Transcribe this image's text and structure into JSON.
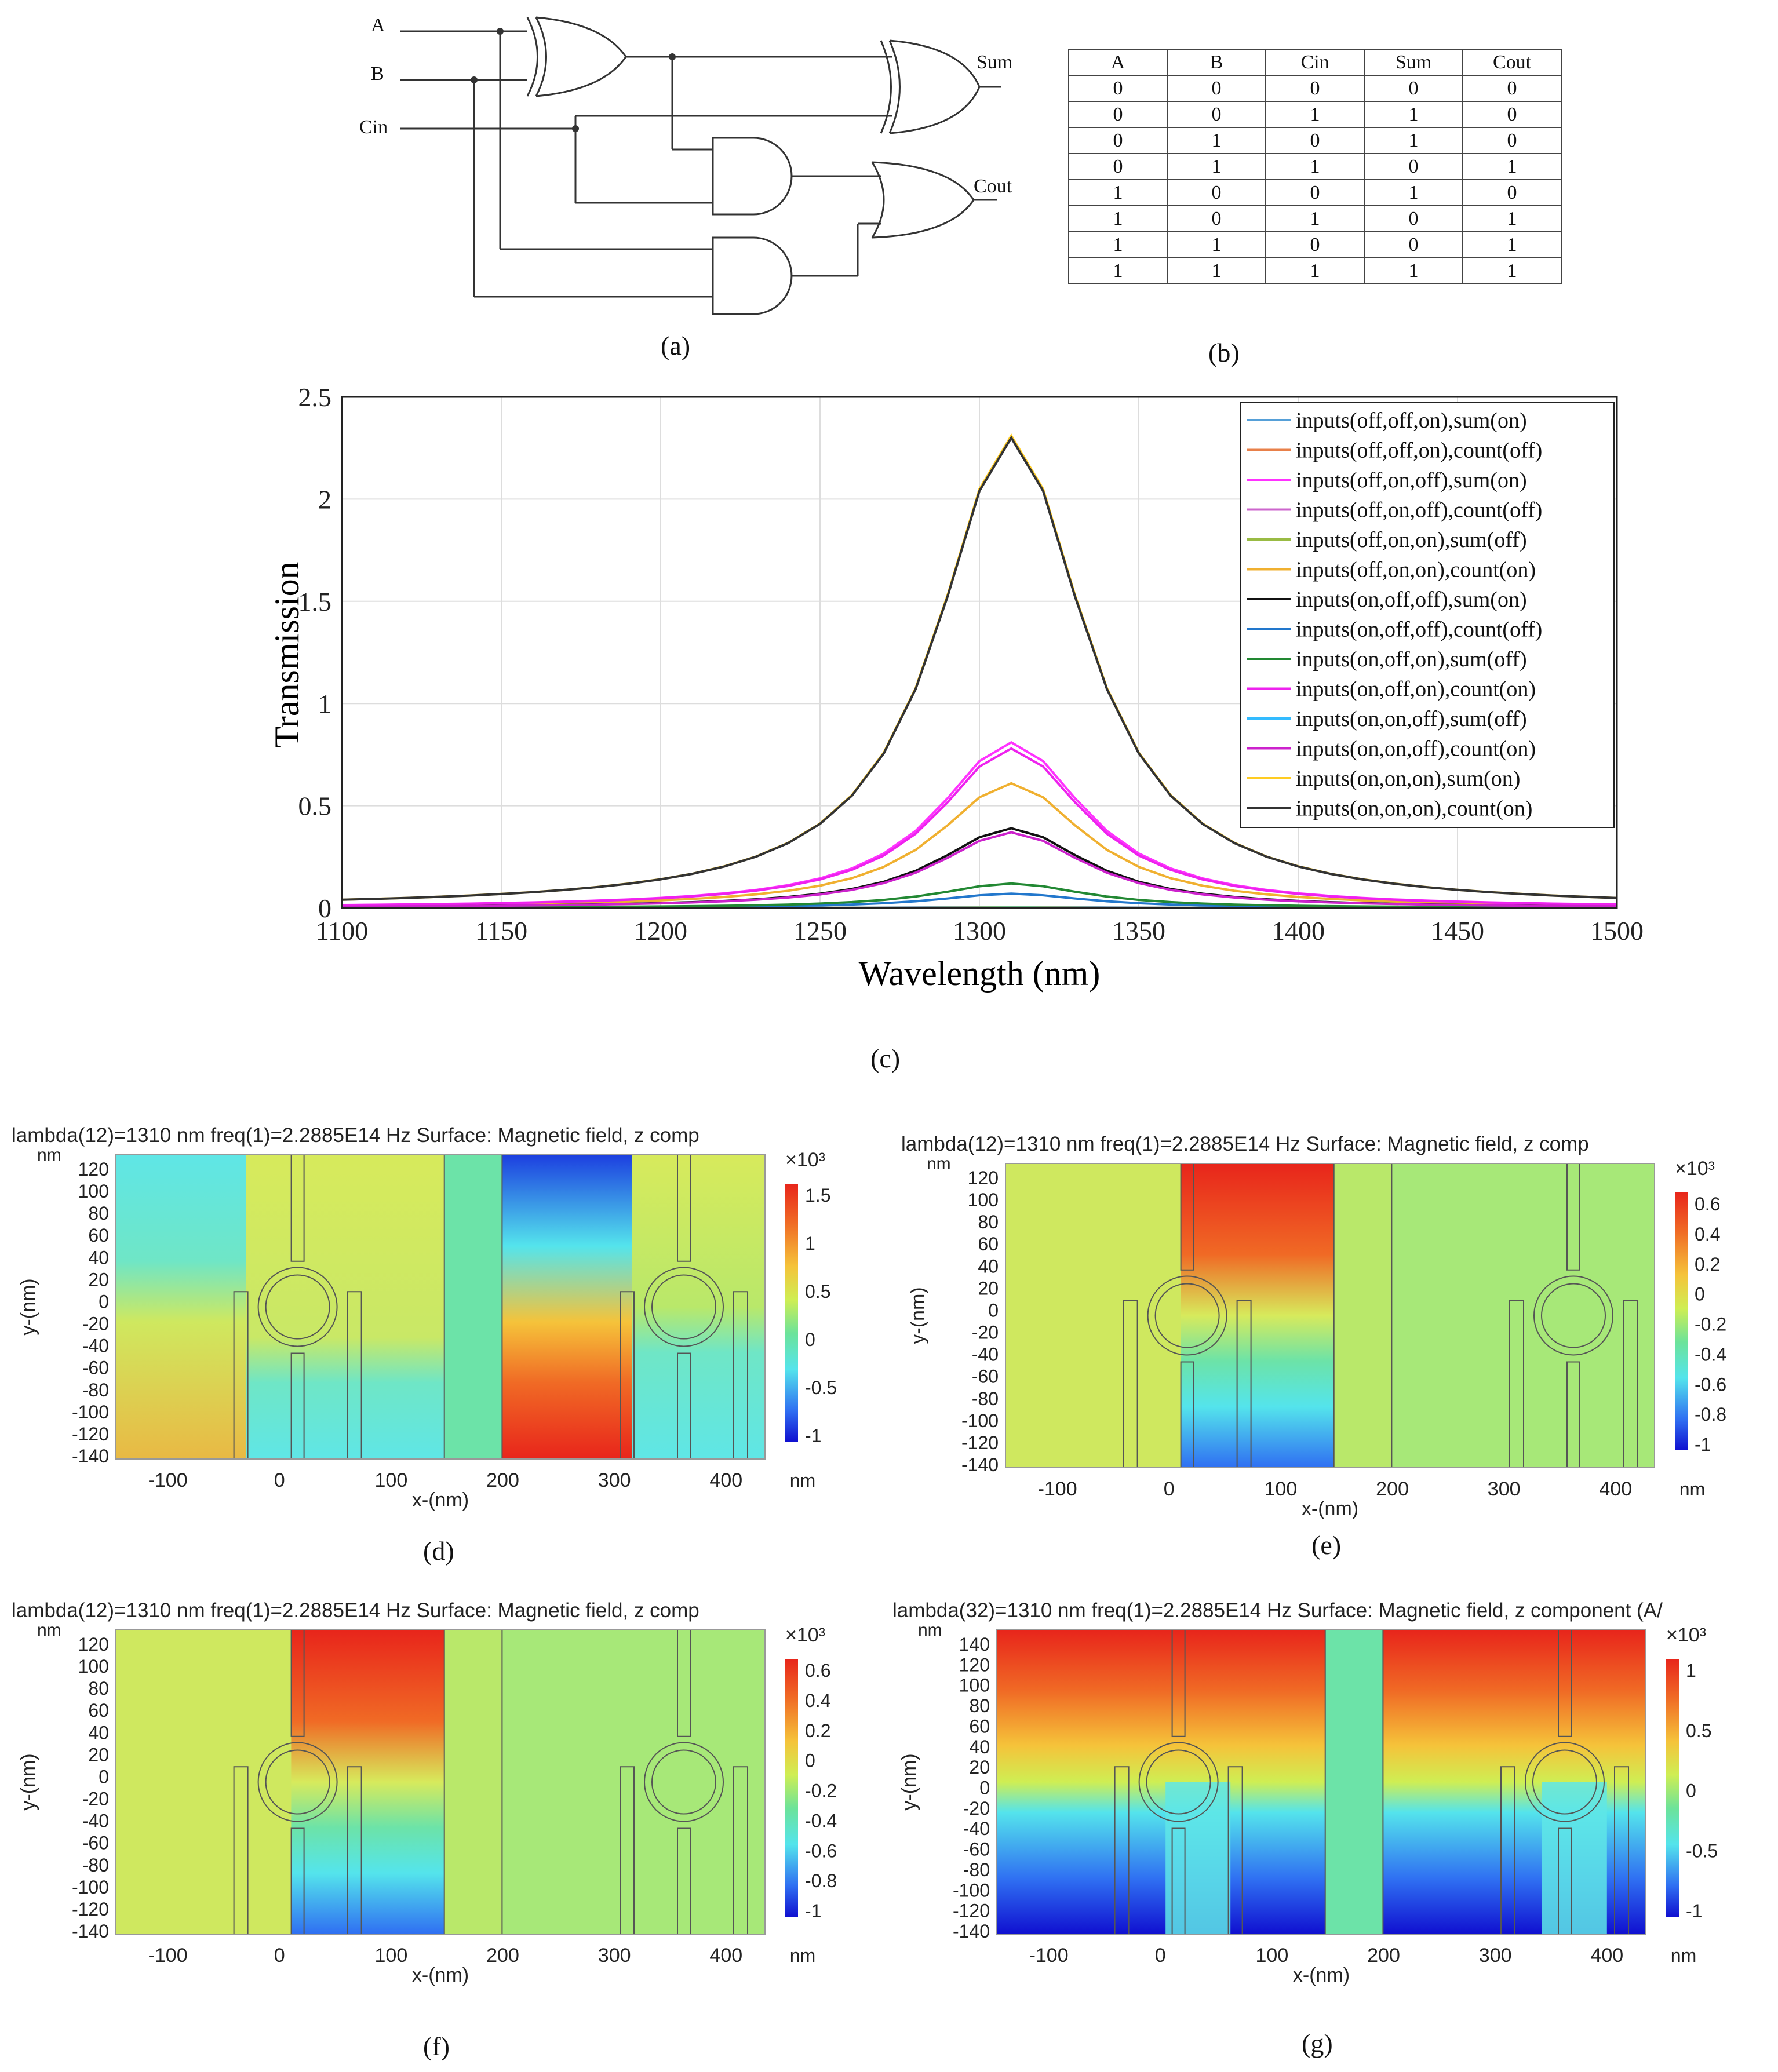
{
  "figure": {
    "panel_labels": {
      "a": "(a)",
      "b": "(b)",
      "c": "(c)",
      "d": "(d)",
      "e": "(e)",
      "f": "(f)",
      "g": "(g)"
    }
  },
  "circuit": {
    "inputs": [
      "A",
      "B",
      "Cin"
    ],
    "outputs": [
      "Sum",
      "Cout"
    ]
  },
  "truth_table": {
    "headers": [
      "A",
      "B",
      "Cin",
      "Sum",
      "Cout"
    ],
    "rows": [
      [
        "0",
        "0",
        "0",
        "0",
        "0"
      ],
      [
        "0",
        "0",
        "1",
        "1",
        "0"
      ],
      [
        "0",
        "1",
        "0",
        "1",
        "0"
      ],
      [
        "0",
        "1",
        "1",
        "0",
        "1"
      ],
      [
        "1",
        "0",
        "0",
        "1",
        "0"
      ],
      [
        "1",
        "0",
        "1",
        "0",
        "1"
      ],
      [
        "1",
        "1",
        "0",
        "0",
        "1"
      ],
      [
        "1",
        "1",
        "1",
        "1",
        "1"
      ]
    ]
  },
  "chart_data": {
    "type": "line",
    "title": "",
    "xlabel": "Wavelength (nm)",
    "ylabel": "Transmission",
    "xlim": [
      1100,
      1500
    ],
    "ylim": [
      0,
      2.5
    ],
    "xticks": [
      "1100",
      "1150",
      "1200",
      "1250",
      "1300",
      "1350",
      "1400",
      "1450",
      "1500"
    ],
    "yticks": [
      "0",
      "0.5",
      "1",
      "1.5",
      "2",
      "2.5"
    ],
    "grid": true,
    "legend_position": "top-right",
    "peak_wavelength": 1310,
    "series": [
      {
        "name": "inputs(off,off,on),sum(on)",
        "color": "#56a0d8",
        "peak": 0.005
      },
      {
        "name": "inputs(off,off,on),count(off)",
        "color": "#e8804a",
        "peak": 0.002
      },
      {
        "name": "inputs(off,on,off),sum(on)",
        "color": "#ff33ff",
        "peak": 0.81
      },
      {
        "name": "inputs(off,on,off),count(off)",
        "color": "#cc66cc",
        "peak": 0.004
      },
      {
        "name": "inputs(off,on,on),sum(off)",
        "color": "#99bb44",
        "peak": 0.003
      },
      {
        "name": "inputs(off,on,on),count(on)",
        "color": "#f0b030",
        "peak": 0.61
      },
      {
        "name": "inputs(on,off,off),sum(on)",
        "color": "#111111",
        "peak": 0.39
      },
      {
        "name": "inputs(on,off,off),count(off)",
        "color": "#2277cc",
        "peak": 0.07
      },
      {
        "name": "inputs(on,off,on),sum(off)",
        "color": "#228833",
        "peak": 0.12
      },
      {
        "name": "inputs(on,off,on),count(on)",
        "color": "#ee22ee",
        "peak": 0.78
      },
      {
        "name": "inputs(on,on,off),sum(off)",
        "color": "#33bbff",
        "peak": 0.001
      },
      {
        "name": "inputs(on,on,off),count(on)",
        "color": "#cc22cc",
        "peak": 0.37
      },
      {
        "name": "inputs(on,on,on),sum(on)",
        "color": "#ffcc22",
        "peak": 2.31
      },
      {
        "name": "inputs(on,on,on),count(on)",
        "color": "#333333",
        "peak": 2.3
      }
    ]
  },
  "field_maps": [
    {
      "id": "d",
      "title": "lambda(12)=1310 nm freq(1)=2.2885E14 Hz  Surface: Magnetic field, z comp",
      "x_unit": "nm",
      "y_unit": "nm",
      "xlabel": "x-(nm)",
      "ylabel": "y-(nm)",
      "xticks": [
        "-100",
        "0",
        "100",
        "200",
        "300",
        "400"
      ],
      "yticks": [
        "120",
        "100",
        "80",
        "60",
        "40",
        "20",
        "0",
        "-20",
        "-40",
        "-60",
        "-80",
        "-100",
        "-120",
        "-140"
      ],
      "colorbar_exp": "×10³",
      "colorbar_ticks": [
        "1.5",
        "1",
        "0.5",
        "0",
        "-0.5",
        "-1"
      ]
    },
    {
      "id": "e",
      "title": "lambda(12)=1310 nm freq(1)=2.2885E14 Hz  Surface: Magnetic field, z comp",
      "x_unit": "nm",
      "y_unit": "nm",
      "xlabel": "x-(nm)",
      "ylabel": "y-(nm)",
      "xticks": [
        "-100",
        "0",
        "100",
        "200",
        "300",
        "400"
      ],
      "yticks": [
        "120",
        "100",
        "80",
        "60",
        "40",
        "20",
        "0",
        "-20",
        "-40",
        "-60",
        "-80",
        "-100",
        "-120",
        "-140"
      ],
      "colorbar_exp": "×10³",
      "colorbar_ticks": [
        "0.6",
        "0.4",
        "0.2",
        "0",
        "-0.2",
        "-0.4",
        "-0.6",
        "-0.8",
        "-1"
      ]
    },
    {
      "id": "f",
      "title": "lambda(12)=1310 nm freq(1)=2.2885E14 Hz  Surface: Magnetic field, z comp",
      "x_unit": "nm",
      "y_unit": "nm",
      "xlabel": "x-(nm)",
      "ylabel": "y-(nm)",
      "xticks": [
        "-100",
        "0",
        "100",
        "200",
        "300",
        "400"
      ],
      "yticks": [
        "120",
        "100",
        "80",
        "60",
        "40",
        "20",
        "0",
        "-20",
        "-40",
        "-60",
        "-80",
        "-100",
        "-120",
        "-140"
      ],
      "colorbar_exp": "×10³",
      "colorbar_ticks": [
        "0.6",
        "0.4",
        "0.2",
        "0",
        "-0.2",
        "-0.4",
        "-0.6",
        "-0.8",
        "-1"
      ]
    },
    {
      "id": "g",
      "title": "lambda(32)=1310 nm freq(1)=2.2885E14 Hz  Surface: Magnetic field, z component (A/",
      "x_unit": "nm",
      "y_unit": "nm",
      "xlabel": "x-(nm)",
      "ylabel": "y-(nm)",
      "xticks": [
        "-100",
        "0",
        "100",
        "200",
        "300",
        "400"
      ],
      "yticks": [
        "140",
        "120",
        "100",
        "80",
        "60",
        "40",
        "20",
        "0",
        "-20",
        "-40",
        "-60",
        "-80",
        "-100",
        "-120",
        "-140"
      ],
      "colorbar_exp": "×10³",
      "colorbar_ticks": [
        "1",
        "0.5",
        "0",
        "-0.5",
        "-1"
      ]
    }
  ]
}
